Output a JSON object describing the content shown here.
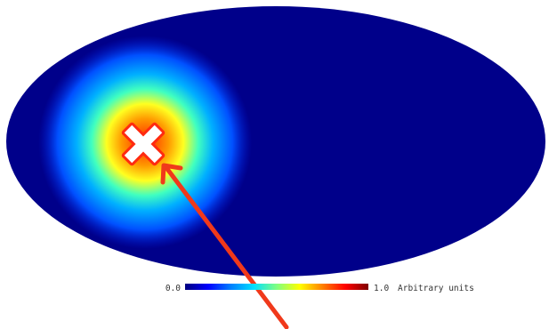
{
  "colorbar": {
    "min_label": "0.0",
    "max_label": "1.0",
    "unit_label": "Arbitrary units",
    "colors": [
      "#00007f",
      "#0000ff",
      "#0080ff",
      "#00e0ff",
      "#80ff80",
      "#ffff00",
      "#ff8000",
      "#ff0000",
      "#7f0000"
    ]
  },
  "map": {
    "projection": "mollweide",
    "background_color": "#00008a",
    "hotspot_colors": [
      "#ff2000",
      "#ff9a00",
      "#ffff20",
      "#40ffc0",
      "#00b0ff",
      "#0050ff",
      "#0018d8"
    ]
  },
  "annotations": {
    "marker": {
      "shape": "cross",
      "fill": "#ffffff",
      "outline": "#ff2a10"
    },
    "arrow": {
      "color": "#f0391b"
    }
  }
}
